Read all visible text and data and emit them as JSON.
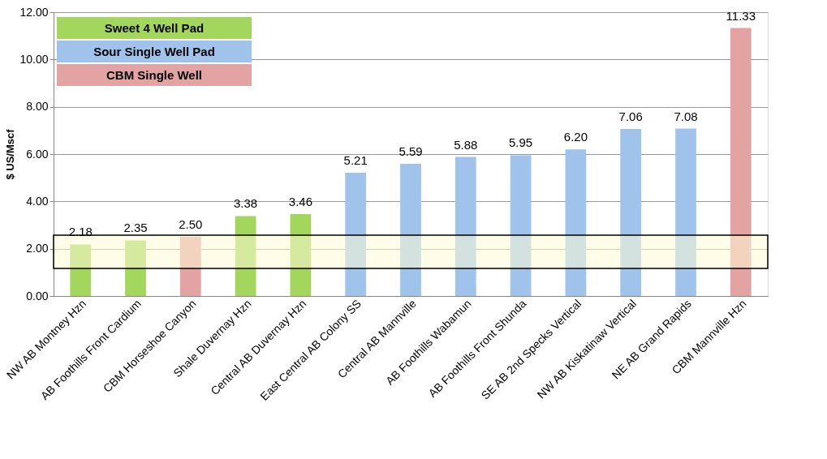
{
  "chart_data": {
    "type": "bar",
    "ylabel": "$ US/Mscf",
    "categories": [
      "NW AB Montney Hzn",
      "AB Foothills Front Cardium",
      "CBM Horseshoe Canyon",
      "Shale Duvernay Hzn",
      "Central AB Duvernay Hzn",
      "East Central AB Colony SS",
      "Central AB Mannville",
      "AB Foothills Wabamun",
      "AB Foothills Front Shunda",
      "SE AB 2nd Specks Vertical",
      "NW AB Kiskatinaw Vertical",
      "NE AB Grand Rapids",
      "CBM Mannville Hzn"
    ],
    "series": [
      {
        "name": "Sweet 4 Well Pad",
        "color": "#a3d65c",
        "values": [
          2.18,
          2.35,
          null,
          3.38,
          3.46,
          null,
          null,
          null,
          null,
          null,
          null,
          null,
          null
        ],
        "value_labels": [
          "2.18",
          "2.35",
          null,
          "3.38",
          "3.46",
          null,
          null,
          null,
          null,
          null,
          null,
          null,
          null
        ]
      },
      {
        "name": "Sour Single Well Pad",
        "color": "#9fc3ea",
        "values": [
          null,
          null,
          null,
          null,
          null,
          5.21,
          5.59,
          5.88,
          5.95,
          6.2,
          7.06,
          7.08,
          null
        ],
        "value_labels": [
          null,
          null,
          null,
          null,
          null,
          "5.21",
          "5.59",
          "5.88",
          "5.95",
          "6.20",
          "7.06",
          "7.08",
          null
        ]
      },
      {
        "name": "CBM Single Well",
        "color": "#e3a3a3",
        "values": [
          null,
          null,
          2.5,
          null,
          null,
          null,
          null,
          null,
          null,
          null,
          null,
          null,
          11.33
        ],
        "value_labels": [
          null,
          null,
          "2.50",
          null,
          null,
          null,
          null,
          null,
          null,
          null,
          null,
          null,
          "11.33"
        ]
      }
    ],
    "ylim": [
      0,
      12
    ],
    "yticks": [
      {
        "value": 0,
        "label": "0.00"
      },
      {
        "value": 2,
        "label": "2.00"
      },
      {
        "value": 4,
        "label": "4.00"
      },
      {
        "value": 6,
        "label": "6.00"
      },
      {
        "value": 8,
        "label": "8.00"
      },
      {
        "value": 10,
        "label": "10.00"
      },
      {
        "value": 12,
        "label": "12.00"
      }
    ],
    "bands": [
      {
        "axis": "y",
        "from": 1.17,
        "to": 2.57,
        "color": "#fffbd6"
      }
    ],
    "grid": "y",
    "legend": "top left"
  }
}
